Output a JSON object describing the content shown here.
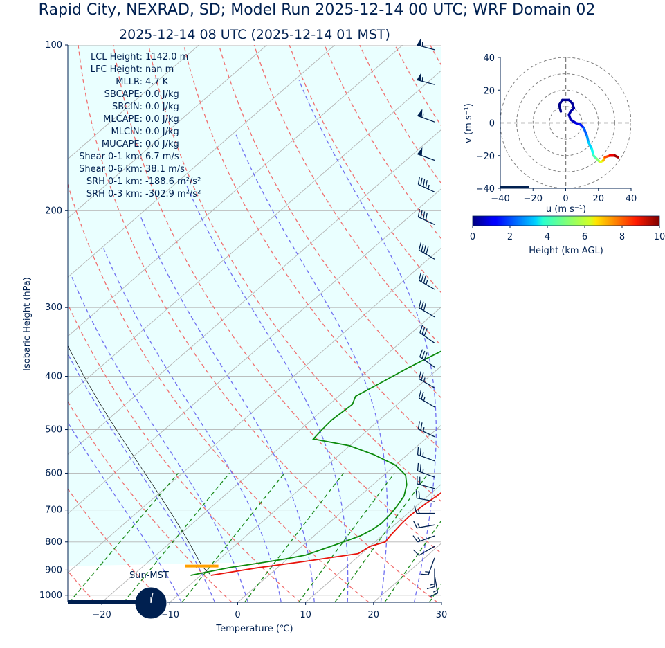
{
  "title": "Rapid City, NEXRAD, SD; Model Run 2025-12-14 00 UTC; WRF Domain 02",
  "subtitle": "2025-12-14 08 UTC  (2025-12-14 01 MST)",
  "chart_data": [
    {
      "type": "line",
      "kind": "skew-t",
      "xlabel": "Temperature (℃)",
      "ylabel": "Isobaric Height (hPa)",
      "xlim": [
        -25,
        30
      ],
      "ylim": [
        1030,
        100
      ],
      "y_scale": "log",
      "xticks": [
        -20,
        -10,
        0,
        10,
        20,
        30
      ],
      "yticks": [
        100,
        200,
        300,
        400,
        500,
        600,
        700,
        800,
        900,
        1000
      ],
      "grid": true,
      "series": [
        {
          "role": "temperature",
          "color": "#e8140c",
          "points": [
            [
              -8.5,
              920
            ],
            [
              -3.0,
              892
            ],
            [
              3.0,
              868
            ],
            [
              9.5,
              840
            ],
            [
              10.0,
              815
            ],
            [
              11.5,
              800
            ],
            [
              11.2,
              780
            ],
            [
              11.0,
              760
            ],
            [
              10.8,
              740
            ],
            [
              10.7,
              720
            ],
            [
              10.8,
              700
            ],
            [
              11.0,
              680
            ],
            [
              11.3,
              660
            ],
            [
              11.6,
              640
            ],
            [
              11.8,
              620
            ],
            [
              11.9,
              600
            ],
            [
              11.7,
              580
            ],
            [
              11.3,
              560
            ],
            [
              10.8,
              540
            ],
            [
              10.3,
              520
            ],
            [
              9.7,
              500
            ],
            [
              9.0,
              480
            ],
            [
              8.0,
              460
            ],
            [
              6.8,
              440
            ],
            [
              5.3,
              420
            ],
            [
              3.2,
              395
            ],
            [
              1.0,
              370
            ],
            [
              -1.5,
              345
            ],
            [
              -4.5,
              318
            ],
            [
              -7.4,
              292
            ],
            [
              -9.9,
              268
            ],
            [
              -12.0,
              246
            ],
            [
              -13.3,
              226
            ],
            [
              -13.6,
              210
            ],
            [
              -13.4,
              196
            ],
            [
              -12.0,
              183
            ],
            [
              -10.3,
              171
            ],
            [
              -7.8,
              159
            ],
            [
              -5.2,
              149
            ],
            [
              -2.2,
              139
            ],
            [
              0.8,
              130
            ],
            [
              3.5,
              122
            ],
            [
              6.2,
              115
            ],
            [
              9.2,
              108
            ],
            [
              12.0,
              102
            ]
          ]
        },
        {
          "role": "dewpoint",
          "color": "#0c8a0c",
          "points": [
            [
              -11.5,
              920
            ],
            [
              -7.0,
              890
            ],
            [
              -3.0,
              872
            ],
            [
              -0.5,
              860
            ],
            [
              2.0,
              845
            ],
            [
              3.5,
              825
            ],
            [
              5.0,
              805
            ],
            [
              6.8,
              780
            ],
            [
              7.5,
              760
            ],
            [
              7.8,
              740
            ],
            [
              7.6,
              715
            ],
            [
              7.2,
              690
            ],
            [
              6.5,
              660
            ],
            [
              5.0,
              630
            ],
            [
              3.2,
              605
            ],
            [
              0.0,
              580
            ],
            [
              -5.0,
              555
            ],
            [
              -10.0,
              535
            ],
            [
              -16.5,
              520
            ],
            [
              -16.8,
              500
            ],
            [
              -17.0,
              480
            ],
            [
              -16.8,
              465
            ],
            [
              -16.6,
              450
            ],
            [
              -17.5,
              435
            ],
            [
              -16.0,
              410
            ],
            [
              -14.5,
              385
            ],
            [
              -12.5,
              360
            ],
            [
              -12.5,
              345
            ],
            [
              -12.8,
              325
            ],
            [
              -13.5,
              300
            ],
            [
              -13.8,
              284
            ],
            [
              -15.2,
              265
            ],
            [
              -16.2,
              252
            ],
            [
              -17.5,
              235
            ],
            [
              -19.0,
              220
            ],
            [
              -19.8,
              205
            ],
            [
              -21.0,
              190
            ],
            [
              -22.4,
              177
            ],
            [
              -24.0,
              164
            ],
            [
              -25.8,
              152
            ],
            [
              -27.5,
              141
            ],
            [
              -29.0,
              132
            ],
            [
              -30.0,
              123
            ],
            [
              -30.5,
              115
            ],
            [
              -31.0,
              108
            ],
            [
              -31.5,
              102
            ]
          ]
        }
      ],
      "parcel_color": "#0c8a0c",
      "surface_pressure": 920,
      "lcl_pressure": 885,
      "lcl_marker_color": "#ffa000",
      "isotherms": [
        -100,
        -90,
        -80,
        -70,
        -60,
        -50,
        -40,
        -30,
        -20,
        -10,
        0,
        10,
        20,
        30
      ],
      "dry_adiabats_theta_K": [
        250,
        260,
        270,
        280,
        290,
        300,
        310,
        320,
        330,
        340,
        350,
        360,
        370,
        380,
        390,
        400,
        410,
        420,
        430
      ],
      "dry_adiabat_color": "#f07070",
      "moist_adiabats_C": [
        -10,
        -5,
        0,
        5,
        10,
        15,
        20,
        25
      ],
      "moist_adiabat_color": "#7070f0",
      "mixing_ratio_gkg": [
        0.5,
        1,
        2,
        4,
        7,
        10,
        16,
        24
      ],
      "mixing_ratio_color": "#1a8a1a",
      "shade_color": "#eaffff",
      "wind_barbs": [
        {
          "p": 102,
          "spd": 55,
          "dir": 285
        },
        {
          "p": 118,
          "spd": 55,
          "dir": 285
        },
        {
          "p": 138,
          "spd": 55,
          "dir": 290
        },
        {
          "p": 162,
          "spd": 50,
          "dir": 290
        },
        {
          "p": 185,
          "spd": 45,
          "dir": 295
        },
        {
          "p": 212,
          "spd": 40,
          "dir": 295
        },
        {
          "p": 245,
          "spd": 40,
          "dir": 300
        },
        {
          "p": 278,
          "spd": 35,
          "dir": 300
        },
        {
          "p": 312,
          "spd": 30,
          "dir": 300
        },
        {
          "p": 348,
          "spd": 30,
          "dir": 305
        },
        {
          "p": 385,
          "spd": 30,
          "dir": 305
        },
        {
          "p": 420,
          "spd": 25,
          "dir": 300
        },
        {
          "p": 455,
          "spd": 25,
          "dir": 300
        },
        {
          "p": 515,
          "spd": 25,
          "dir": 295
        },
        {
          "p": 570,
          "spd": 25,
          "dir": 290
        },
        {
          "p": 610,
          "spd": 25,
          "dir": 290
        },
        {
          "p": 640,
          "spd": 20,
          "dir": 285
        },
        {
          "p": 675,
          "spd": 20,
          "dir": 280
        },
        {
          "p": 710,
          "spd": 15,
          "dir": 270
        },
        {
          "p": 745,
          "spd": 15,
          "dir": 260
        },
        {
          "p": 780,
          "spd": 15,
          "dir": 250
        },
        {
          "p": 815,
          "spd": 10,
          "dir": 240
        },
        {
          "p": 855,
          "spd": 15,
          "dir": 200
        },
        {
          "p": 895,
          "spd": 15,
          "dir": 180
        },
        {
          "p": 920,
          "spd": 15,
          "dir": 170
        }
      ],
      "barb_color": "#002050",
      "clock_label": "Sun-MST",
      "clock_color": "#002050"
    },
    {
      "type": "line",
      "kind": "hodograph",
      "xlabel": "u (m s⁻¹)",
      "ylabel": "v (m s⁻¹)",
      "xlim": [
        -40,
        40
      ],
      "ylim": [
        -40,
        40
      ],
      "xticks": [
        -40,
        -20,
        0,
        20,
        40
      ],
      "yticks": [
        40,
        20,
        0,
        -20,
        -40
      ],
      "rings": [
        10,
        20,
        30,
        40
      ],
      "grid": true,
      "points": [
        [
          -3,
          7,
          0.05
        ],
        [
          -4,
          11,
          0.1
        ],
        [
          -2,
          14,
          0.15
        ],
        [
          2,
          14,
          0.2
        ],
        [
          4,
          12,
          0.25
        ],
        [
          5,
          9,
          0.3
        ],
        [
          3,
          7,
          0.35
        ],
        [
          2,
          5,
          0.4
        ],
        [
          3,
          2,
          0.5
        ],
        [
          6,
          0,
          0.8
        ],
        [
          9,
          -1,
          1.2
        ],
        [
          11,
          -3,
          1.8
        ],
        [
          13,
          -8,
          2.5
        ],
        [
          14,
          -12,
          3.0
        ],
        [
          16,
          -16,
          3.6
        ],
        [
          17,
          -20,
          4.2
        ],
        [
          19,
          -22,
          4.8
        ],
        [
          21,
          -24,
          5.5
        ],
        [
          23,
          -23,
          6.5
        ],
        [
          24,
          -21,
          7.5
        ],
        [
          27,
          -20,
          8.5
        ],
        [
          30,
          -20,
          9.3
        ],
        [
          32,
          -21,
          10
        ]
      ]
    }
  ],
  "params": [
    {
      "label": "LCL Height:",
      "value": "1142.0 m"
    },
    {
      "label": "LFC Height:",
      "value": "nan m"
    },
    {
      "label": "MLLR:",
      "value": "4.7 K"
    },
    {
      "label": "SBCAPE:",
      "value": "0.0 J/kg"
    },
    {
      "label": "SBCIN:",
      "value": "0.0 J/kg"
    },
    {
      "label": "MLCAPE:",
      "value": "0.0 J/kg"
    },
    {
      "label": "MLCIN:",
      "value": "0.0 J/kg"
    },
    {
      "label": "MUCAPE:",
      "value": "0.0 J/kg"
    },
    {
      "label": "Shear 0-1 km:",
      "value": "6.7 m/s"
    },
    {
      "label": "Shear 0-6 km:",
      "value": "38.1 m/s"
    },
    {
      "label": "SRH 0-1 km:",
      "value": "-188.6 m²/s²"
    },
    {
      "label": "SRH 0-3 km:",
      "value": "-302.9 m²/s²"
    }
  ],
  "colorbar": {
    "label": "Height (km AGL)",
    "ticks": [
      "0",
      "2",
      "4",
      "6",
      "8",
      "10"
    ],
    "colormap": "jet"
  }
}
